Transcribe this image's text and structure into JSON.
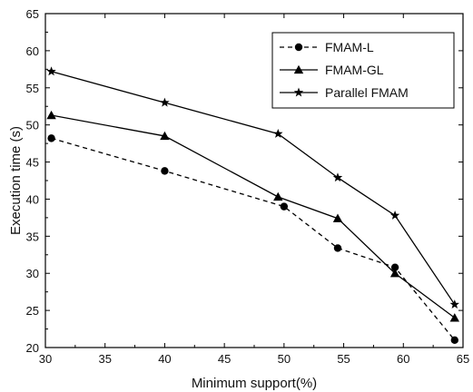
{
  "chart_data": {
    "type": "line",
    "xlabel": "Minimum support(%)",
    "ylabel": "Execution time (s)",
    "xlim": [
      30,
      65
    ],
    "ylim": [
      20,
      65
    ],
    "xticks": [
      30,
      35,
      40,
      45,
      50,
      55,
      60,
      65
    ],
    "yticks": [
      20,
      25,
      30,
      35,
      40,
      45,
      50,
      55,
      60,
      65
    ],
    "grid": false,
    "legend_position": "top-right",
    "series": [
      {
        "name": "FMAM-L",
        "marker": "circle",
        "dash": "dashed",
        "x": [
          30.5,
          40,
          50,
          54.5,
          59.3,
          64.3
        ],
        "y": [
          48.2,
          43.8,
          39,
          33.4,
          30.8,
          21
        ]
      },
      {
        "name": "FMAM-GL",
        "marker": "triangle",
        "dash": "solid",
        "x": [
          30.5,
          40,
          49.5,
          54.5,
          59.3,
          64.3
        ],
        "y": [
          51.3,
          48.5,
          40.3,
          37.4,
          30,
          24
        ]
      },
      {
        "name": "Parallel FMAM",
        "marker": "star",
        "dash": "solid",
        "x": [
          30.5,
          40,
          49.5,
          54.5,
          59.3,
          64.3
        ],
        "y": [
          57.2,
          53,
          48.8,
          42.9,
          37.8,
          25.8
        ]
      }
    ]
  }
}
